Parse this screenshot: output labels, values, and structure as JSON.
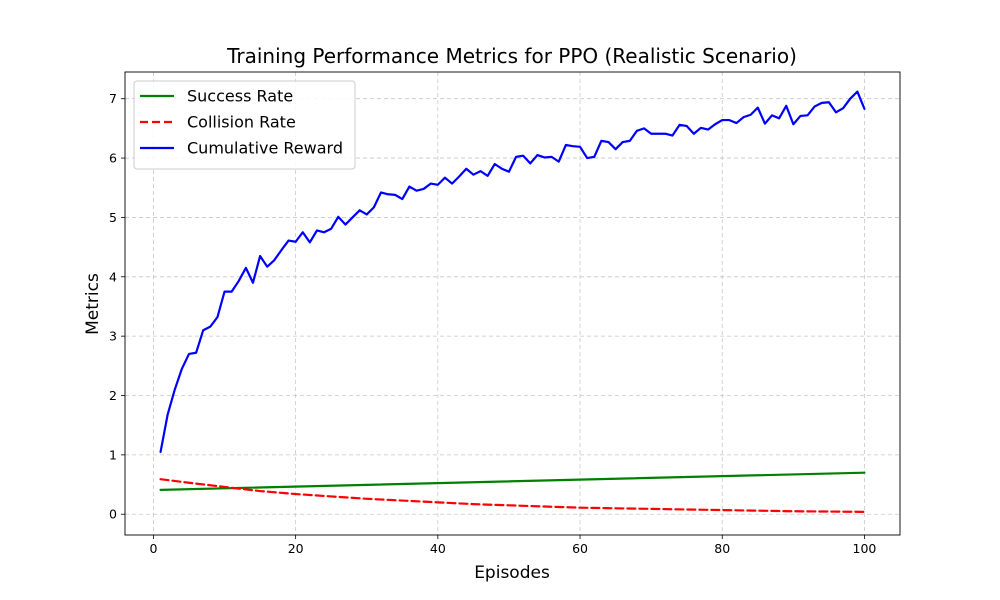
{
  "chart_data": {
    "type": "line",
    "title": "Training Performance Metrics for PPO (Realistic Scenario)",
    "xlabel": "Episodes",
    "ylabel": "Metrics",
    "xlim": [
      -4,
      105
    ],
    "ylim": [
      -0.35,
      7.45
    ],
    "xticks": [
      0,
      20,
      40,
      60,
      80,
      100
    ],
    "yticks": [
      0,
      1,
      2,
      3,
      4,
      5,
      6,
      7
    ],
    "grid": true,
    "legend_position": "top-left",
    "series": [
      {
        "name": "Success Rate",
        "color": "#008000",
        "style": "solid",
        "x": [
          1,
          100
        ],
        "y": [
          0.41,
          0.7
        ]
      },
      {
        "name": "Collision Rate",
        "color": "#ff0000",
        "style": "dashed",
        "x": [
          1,
          5,
          10,
          15,
          20,
          25,
          30,
          35,
          40,
          45,
          50,
          55,
          60,
          65,
          70,
          75,
          80,
          85,
          90,
          95,
          100
        ],
        "y": [
          0.59,
          0.53,
          0.46,
          0.39,
          0.34,
          0.3,
          0.26,
          0.23,
          0.2,
          0.17,
          0.15,
          0.13,
          0.11,
          0.1,
          0.09,
          0.08,
          0.07,
          0.06,
          0.05,
          0.045,
          0.04
        ]
      },
      {
        "name": "Cumulative Reward",
        "color": "#0000ff",
        "style": "solid",
        "x": [
          1,
          2,
          3,
          4,
          5,
          6,
          7,
          8,
          9,
          10,
          11,
          12,
          13,
          14,
          15,
          16,
          17,
          18,
          19,
          20,
          21,
          22,
          23,
          24,
          25,
          26,
          27,
          28,
          29,
          30,
          31,
          32,
          33,
          34,
          35,
          36,
          37,
          38,
          39,
          40,
          41,
          42,
          43,
          44,
          45,
          46,
          47,
          48,
          49,
          50,
          51,
          52,
          53,
          54,
          55,
          56,
          57,
          58,
          59,
          60,
          61,
          62,
          63,
          64,
          65,
          66,
          67,
          68,
          69,
          70,
          71,
          72,
          73,
          74,
          75,
          76,
          77,
          78,
          79,
          80,
          81,
          82,
          83,
          84,
          85,
          86,
          87,
          88,
          89,
          90,
          91,
          92,
          93,
          94,
          95,
          96,
          97,
          98,
          99,
          100
        ],
        "y": [
          1.05,
          1.68,
          2.1,
          2.45,
          2.7,
          2.72,
          3.1,
          3.16,
          3.32,
          3.75,
          3.75,
          3.93,
          4.15,
          3.9,
          4.35,
          4.17,
          4.28,
          4.45,
          4.61,
          4.59,
          4.75,
          4.58,
          4.78,
          4.75,
          4.81,
          5.01,
          4.88,
          5.0,
          5.12,
          5.05,
          5.17,
          5.42,
          5.39,
          5.38,
          5.31,
          5.52,
          5.45,
          5.48,
          5.57,
          5.55,
          5.67,
          5.57,
          5.69,
          5.82,
          5.72,
          5.78,
          5.7,
          5.9,
          5.82,
          5.77,
          6.02,
          6.04,
          5.91,
          6.05,
          6.01,
          6.02,
          5.94,
          6.22,
          6.2,
          6.19,
          6.0,
          6.02,
          6.29,
          6.27,
          6.15,
          6.27,
          6.29,
          6.46,
          6.5,
          6.41,
          6.41,
          6.41,
          6.38,
          6.56,
          6.54,
          6.41,
          6.51,
          6.48,
          6.57,
          6.64,
          6.64,
          6.59,
          6.69,
          6.73,
          6.85,
          6.58,
          6.72,
          6.67,
          6.88,
          6.57,
          6.71,
          6.72,
          6.87,
          6.93,
          6.94,
          6.77,
          6.84,
          7.0,
          7.12,
          6.83
        ]
      }
    ]
  }
}
